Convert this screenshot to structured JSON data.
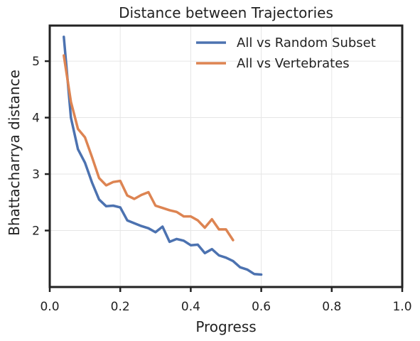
{
  "chart_data": {
    "type": "line",
    "title": "Distance between Trajectories",
    "xlabel": "Progress",
    "ylabel": "Bhattacharrya distance",
    "xlim": [
      0.0,
      1.0
    ],
    "ylim": [
      1.0,
      5.63
    ],
    "xticks": [
      0.0,
      0.2,
      0.4,
      0.6,
      0.8,
      1.0
    ],
    "xtick_labels": [
      "0.0",
      "0.2",
      "0.4",
      "0.6",
      "0.8",
      "1.0"
    ],
    "yticks": [
      2,
      3,
      4,
      5
    ],
    "ytick_labels": [
      "2",
      "3",
      "4",
      "5"
    ],
    "grid": true,
    "legend_position": "top-right",
    "series": [
      {
        "name": "All vs Random Subset",
        "color": "#4c72b0",
        "x": [
          0.04,
          0.06,
          0.08,
          0.1,
          0.12,
          0.14,
          0.16,
          0.18,
          0.2,
          0.22,
          0.24,
          0.26,
          0.28,
          0.3,
          0.32,
          0.34,
          0.36,
          0.38,
          0.4,
          0.42,
          0.44,
          0.46,
          0.48,
          0.5,
          0.52,
          0.54,
          0.56,
          0.58,
          0.6
        ],
        "y": [
          5.43,
          4.0,
          3.44,
          3.2,
          2.85,
          2.55,
          2.43,
          2.44,
          2.41,
          2.18,
          2.13,
          2.08,
          2.04,
          1.97,
          2.07,
          1.8,
          1.85,
          1.82,
          1.74,
          1.75,
          1.6,
          1.67,
          1.56,
          1.52,
          1.46,
          1.35,
          1.31,
          1.23,
          1.22
        ]
      },
      {
        "name": "All vs Vertebrates",
        "color": "#dd8452",
        "x": [
          0.04,
          0.06,
          0.08,
          0.1,
          0.12,
          0.14,
          0.16,
          0.18,
          0.2,
          0.22,
          0.24,
          0.26,
          0.28,
          0.3,
          0.32,
          0.34,
          0.36,
          0.38,
          0.4,
          0.42,
          0.44,
          0.46,
          0.48,
          0.5,
          0.52
        ],
        "y": [
          5.1,
          4.28,
          3.8,
          3.65,
          3.3,
          2.93,
          2.8,
          2.86,
          2.88,
          2.62,
          2.56,
          2.63,
          2.68,
          2.44,
          2.4,
          2.36,
          2.33,
          2.25,
          2.25,
          2.18,
          2.05,
          2.2,
          2.02,
          2.02,
          1.83
        ]
      }
    ]
  }
}
